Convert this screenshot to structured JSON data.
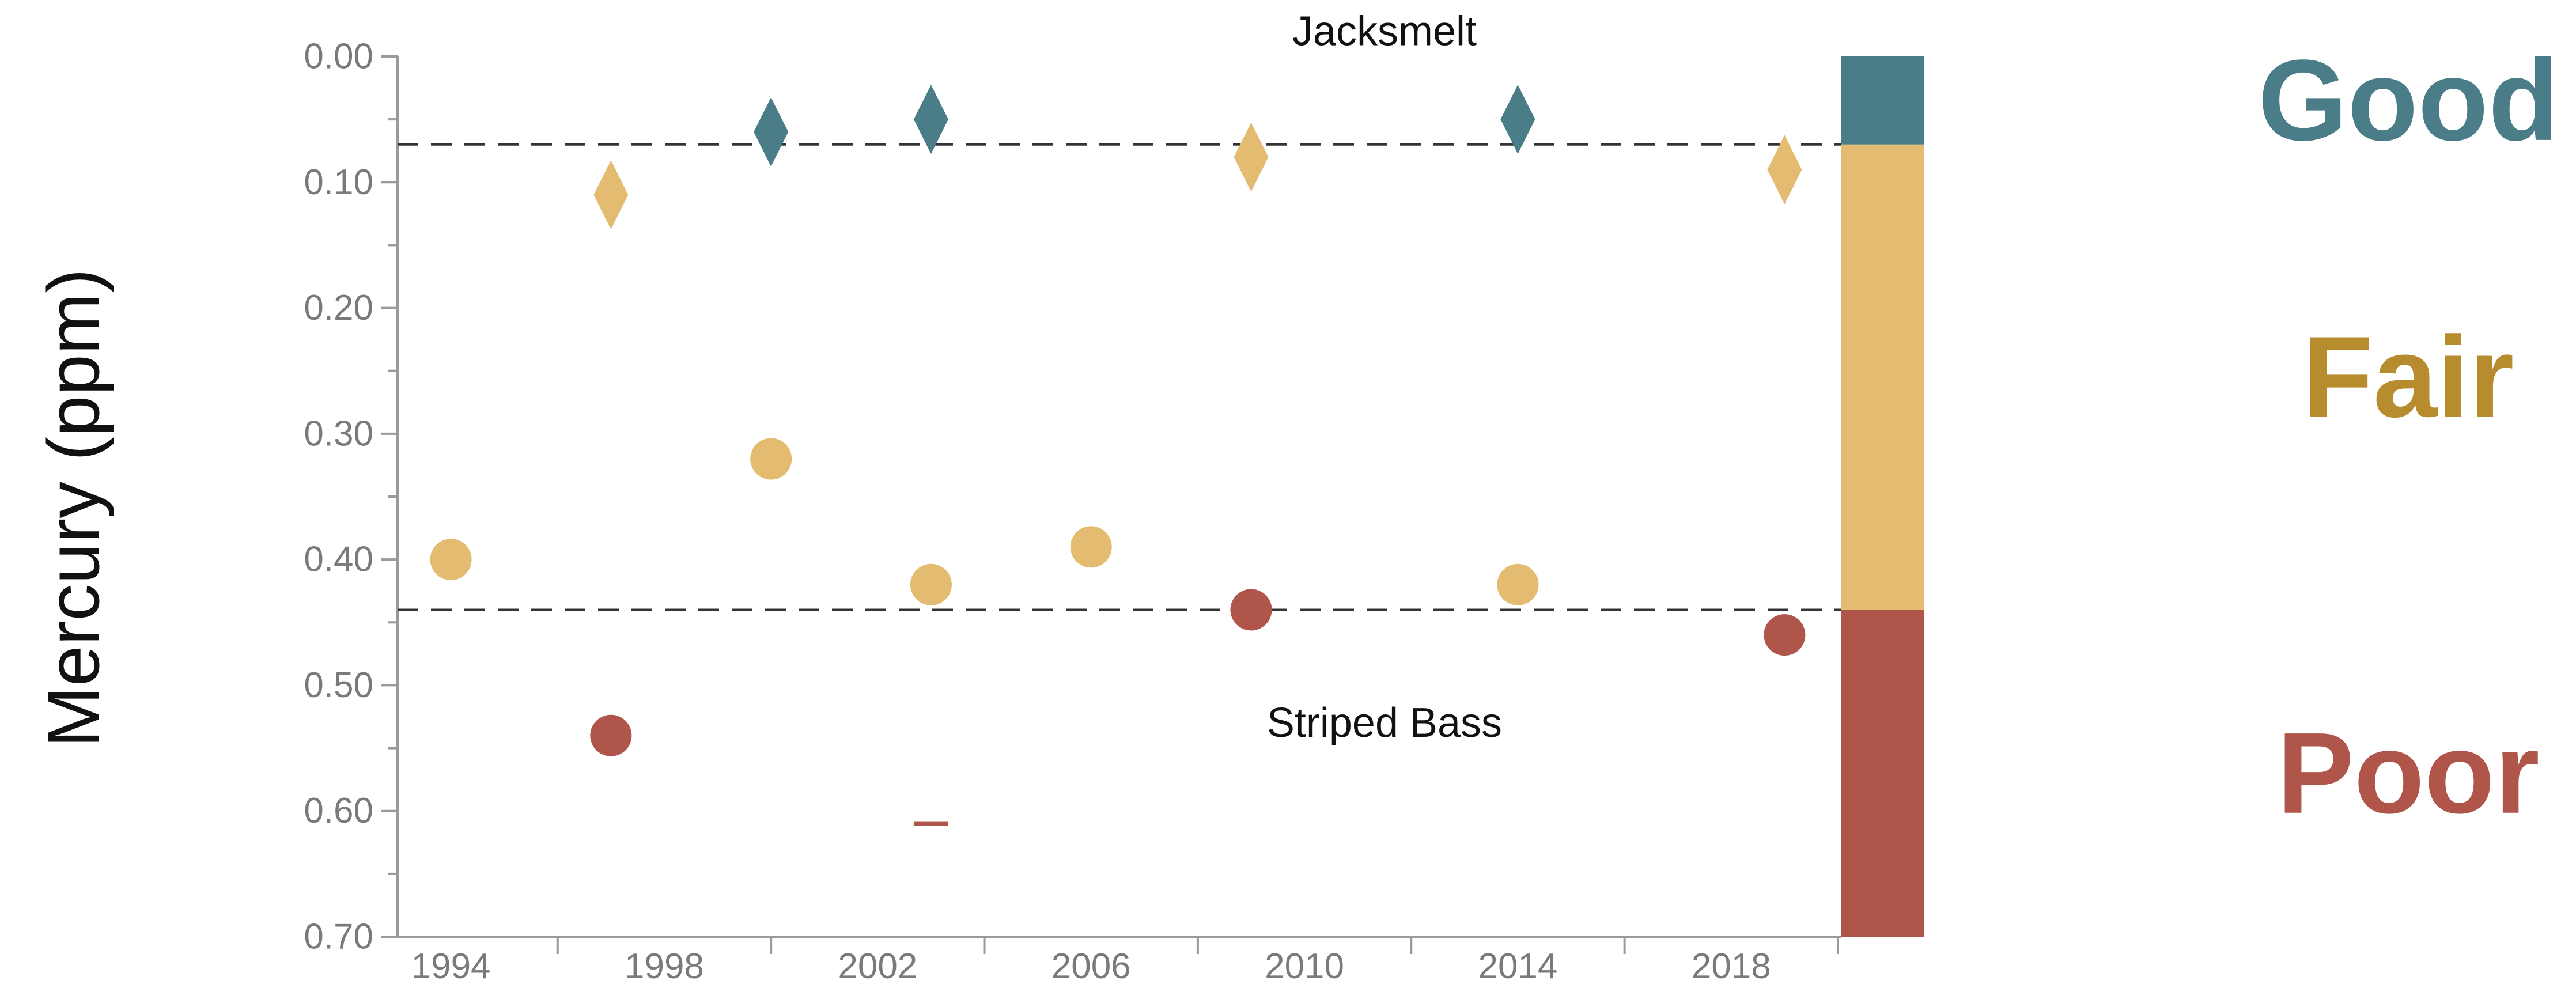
{
  "chart_data": {
    "type": "scatter",
    "ylabel": "Mercury (ppm)",
    "y_axis": {
      "range": [
        0.0,
        0.7
      ],
      "reversed": true,
      "major_ticks": [
        0.0,
        0.1,
        0.2,
        0.3,
        0.4,
        0.5,
        0.6,
        0.7
      ],
      "tick_labels": [
        "0.00",
        "0.10",
        "0.20",
        "0.30",
        "0.40",
        "0.50",
        "0.60",
        "0.70"
      ]
    },
    "x_axis": {
      "range": [
        1993,
        2020
      ],
      "major_ticks": [
        1994,
        1998,
        2002,
        2006,
        2010,
        2014,
        2018
      ],
      "tick_labels": [
        "1994",
        "1998",
        "2002",
        "2006",
        "2010",
        "2014",
        "2018"
      ]
    },
    "thresholds": [
      0.07,
      0.44
    ],
    "annotations": [
      {
        "text": "Jacksmelt",
        "x": 2011.5,
        "y": -0.02
      },
      {
        "text": "Striped Bass",
        "x": 2011.5,
        "y": 0.53
      }
    ],
    "bands": [
      {
        "label": "Good",
        "from": 0.0,
        "to": 0.07,
        "color": "#4a7d87",
        "label_color": "#4a7d87"
      },
      {
        "label": "Fair",
        "from": 0.07,
        "to": 0.44,
        "color": "#e3bc72",
        "label_color": "#b68c2e"
      },
      {
        "label": "Poor",
        "from": 0.44,
        "to": 0.7,
        "color": "#b0554a",
        "label_color": "#b0554a"
      }
    ],
    "series": [
      {
        "name": "Jacksmelt",
        "marker": "diamond",
        "points": [
          {
            "x": 1997,
            "y": 0.11,
            "status": "Fair"
          },
          {
            "x": 2000,
            "y": 0.06,
            "status": "Good"
          },
          {
            "x": 2003,
            "y": 0.05,
            "status": "Good"
          },
          {
            "x": 2009,
            "y": 0.08,
            "status": "Fair"
          },
          {
            "x": 2014,
            "y": 0.05,
            "status": "Good"
          },
          {
            "x": 2019,
            "y": 0.09,
            "status": "Fair"
          }
        ]
      },
      {
        "name": "Striped Bass",
        "marker": "circle",
        "points": [
          {
            "x": 1994,
            "y": 0.4,
            "status": "Fair"
          },
          {
            "x": 1997,
            "y": 0.54,
            "status": "Poor"
          },
          {
            "x": 2000,
            "y": 0.32,
            "status": "Fair"
          },
          {
            "x": 2003,
            "y": 0.42,
            "status": "Fair"
          },
          {
            "x": 2006,
            "y": 0.39,
            "status": "Fair"
          },
          {
            "x": 2009,
            "y": 0.44,
            "status": "Poor"
          },
          {
            "x": 2014,
            "y": 0.42,
            "status": "Fair"
          },
          {
            "x": 2019,
            "y": 0.46,
            "status": "Poor"
          }
        ]
      },
      {
        "marker": "dash",
        "points": [
          {
            "x": 2003,
            "y": 0.61,
            "status": "Poor"
          }
        ]
      }
    ],
    "status_colors": {
      "Good": "#4a7d87",
      "Fair": "#e3bc72",
      "Poor": "#b0554a"
    }
  }
}
